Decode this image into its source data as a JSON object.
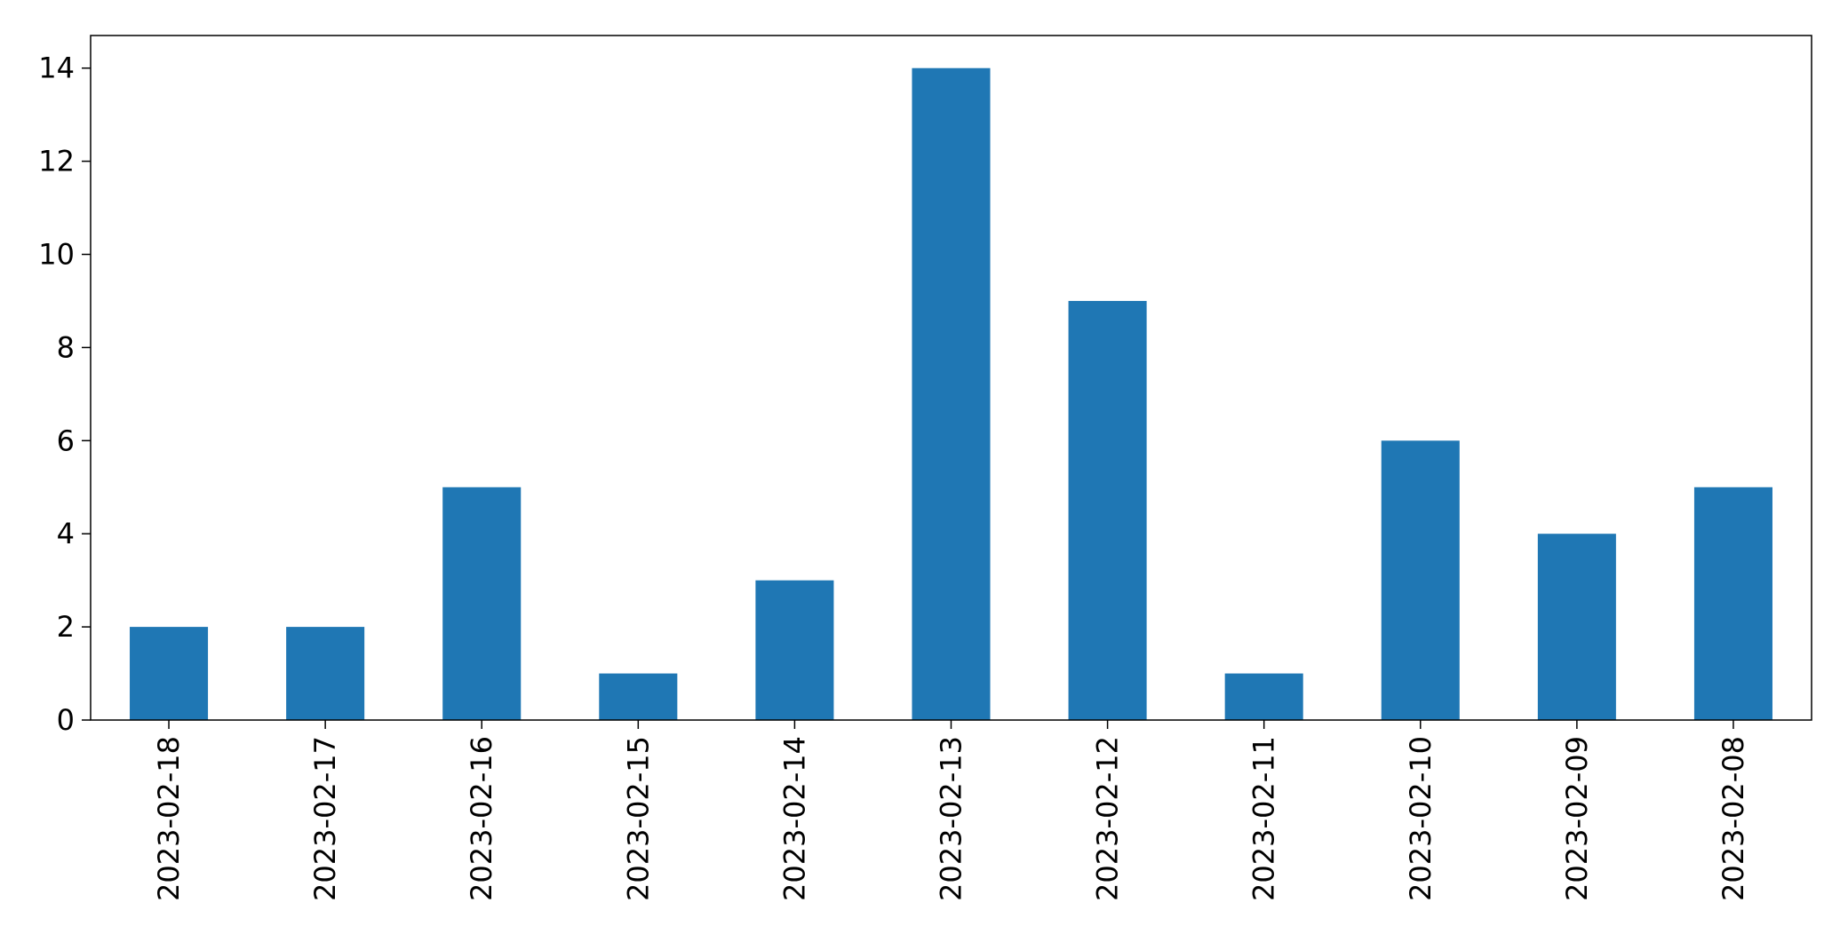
{
  "chart_data": {
    "type": "bar",
    "categories": [
      "2023-02-18",
      "2023-02-17",
      "2023-02-16",
      "2023-02-15",
      "2023-02-14",
      "2023-02-13",
      "2023-02-12",
      "2023-02-11",
      "2023-02-10",
      "2023-02-09",
      "2023-02-08"
    ],
    "values": [
      2,
      2,
      5,
      1,
      3,
      14,
      9,
      1,
      6,
      4,
      5
    ],
    "title": "",
    "xlabel": "",
    "ylabel": "",
    "ylim": [
      0,
      14.7
    ],
    "yticks": [
      0,
      2,
      4,
      6,
      8,
      10,
      12,
      14
    ],
    "grid": false,
    "bar_color": "#1f77b4"
  }
}
